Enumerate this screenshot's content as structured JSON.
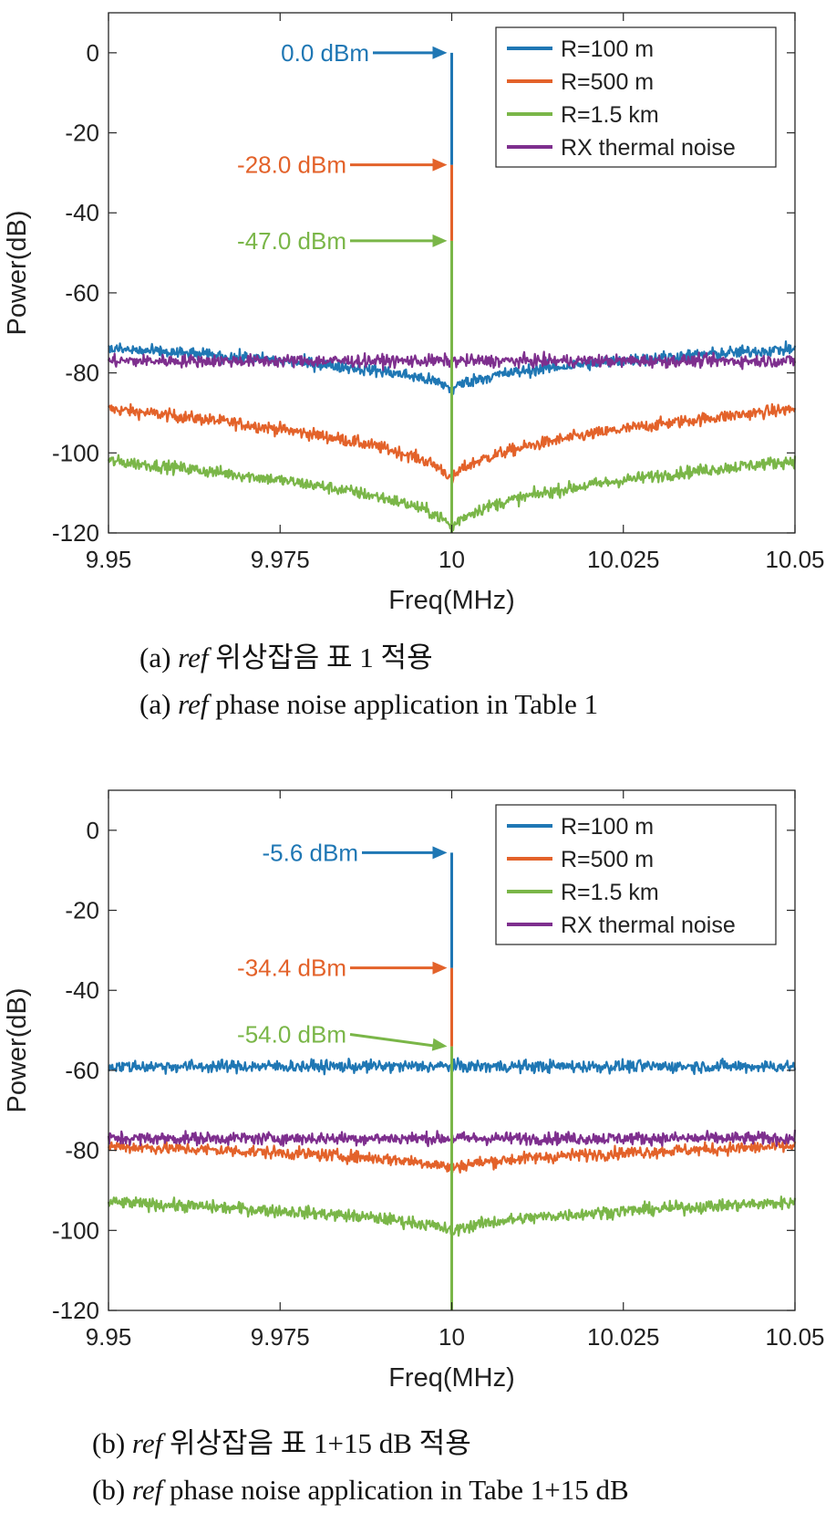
{
  "colors": {
    "R100": "#1f77b4",
    "R500": "#e3622a",
    "R1500": "#7ab648",
    "thermal": "#7e2f8e",
    "axis": "#262626",
    "grid": "#000000"
  },
  "chart_data": [
    {
      "type": "line",
      "panel": "a",
      "xlabel": "Freq(MHz)",
      "ylabel": "Power(dB)",
      "xlim": [
        9.95,
        10.05
      ],
      "ylim": [
        -120,
        10
      ],
      "xticks": [
        "9.95",
        "9.975",
        "10",
        "10.025",
        "10.05"
      ],
      "xtick_values": [
        9.95,
        9.975,
        10,
        10.025,
        10.05
      ],
      "yticks": [
        "0",
        "-20",
        "-40",
        "-60",
        "-80",
        "-100",
        "-120"
      ],
      "ytick_values": [
        0,
        -20,
        -40,
        -60,
        -80,
        -100,
        -120
      ],
      "grid": false,
      "legend_position": "top-right",
      "series": [
        {
          "name": "R=100 m",
          "color_key": "R100",
          "floor_edge": -74,
          "floor_center": -85,
          "peak": 0.0
        },
        {
          "name": "R=500 m",
          "color_key": "R500",
          "floor_edge": -89,
          "floor_center": -108,
          "peak": -28.0
        },
        {
          "name": "R=1.5 km",
          "color_key": "R1500",
          "floor_edge": -102,
          "floor_center": -120,
          "peak": -47.0
        },
        {
          "name": "RX thermal noise",
          "color_key": "thermal",
          "floor_edge": -77,
          "floor_center": -77
        }
      ],
      "annotations": [
        {
          "text": "0.0 dBm",
          "color_key": "R100",
          "y": 0.0
        },
        {
          "text": "-28.0 dBm",
          "color_key": "R500",
          "y": -28.0
        },
        {
          "text": "-47.0 dBm",
          "color_key": "R1500",
          "y": -47.0
        }
      ],
      "caption_ko": {
        "prefix": "(a) ",
        "ref": "ref",
        "rest": " 위상잡음 표 1 적용"
      },
      "caption_en": {
        "prefix": "(a) ",
        "ref": "ref",
        "rest": " phase noise application in Table 1"
      }
    },
    {
      "type": "line",
      "panel": "b",
      "xlabel": "Freq(MHz)",
      "ylabel": "Power(dB)",
      "xlim": [
        9.95,
        10.05
      ],
      "ylim": [
        -120,
        10
      ],
      "xticks": [
        "9.95",
        "9.975",
        "10",
        "10.025",
        "10.05"
      ],
      "xtick_values": [
        9.95,
        9.975,
        10,
        10.025,
        10.05
      ],
      "yticks": [
        "0",
        "-20",
        "-40",
        "-60",
        "-80",
        "-100",
        "-120"
      ],
      "ytick_values": [
        0,
        -20,
        -40,
        -60,
        -80,
        -100,
        -120
      ],
      "grid": false,
      "legend_position": "top-right",
      "series": [
        {
          "name": "R=100 m",
          "color_key": "R100",
          "floor_edge": -59,
          "floor_center": -59,
          "peak": -5.6
        },
        {
          "name": "R=500 m",
          "color_key": "R500",
          "floor_edge": -79,
          "floor_center": -85,
          "peak": -34.4
        },
        {
          "name": "R=1.5 km",
          "color_key": "R1500",
          "floor_edge": -93,
          "floor_center": -101,
          "peak": -54.0
        },
        {
          "name": "RX thermal noise",
          "color_key": "thermal",
          "floor_edge": -77,
          "floor_center": -77
        }
      ],
      "annotations": [
        {
          "text": "-5.6 dBm",
          "color_key": "R100",
          "y": -5.6
        },
        {
          "text": "-34.4 dBm",
          "color_key": "R500",
          "y": -34.4
        },
        {
          "text": "-54.0 dBm",
          "color_key": "R1500",
          "y": -54.0
        }
      ],
      "caption_ko": {
        "prefix": "(b) ",
        "ref": "ref",
        "rest": " 위상잡음 표 1+15 dB 적용"
      },
      "caption_en": {
        "prefix": "(b) ",
        "ref": "ref",
        "rest": " phase noise application in Tabe 1+15 dB"
      }
    }
  ]
}
